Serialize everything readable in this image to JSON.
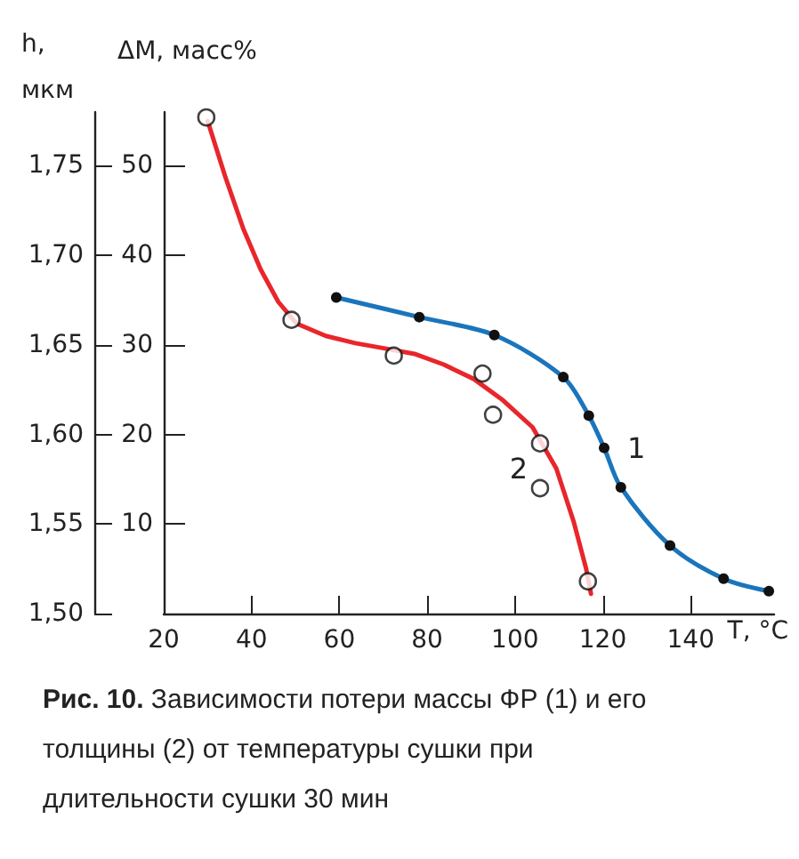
{
  "chart_data": {
    "type": "line",
    "title": "Рис. 10. Зависимости потери массы ФР (1) и его толщины (2) от температуры сушки при длительности сушки 30 мин",
    "xlabel": "T, °C",
    "ylabel": "ΔM, масс%",
    "y2label": "h, мкм",
    "xlim": [
      20,
      159
    ],
    "xticks": [
      20,
      40,
      60,
      80,
      100,
      120,
      140
    ],
    "ylim": [
      0,
      56
    ],
    "yticks": [
      10,
      20,
      30,
      40,
      50
    ],
    "y2lim": [
      1.5,
      1.78
    ],
    "y2ticks": [
      {
        "value": 1.5,
        "label": "1,50"
      },
      {
        "value": 1.55,
        "label": "1,55"
      },
      {
        "value": 1.6,
        "label": "1,60"
      },
      {
        "value": 1.65,
        "label": "1,65"
      },
      {
        "value": 1.7,
        "label": "1,70"
      },
      {
        "value": 1.75,
        "label": "1,75"
      }
    ],
    "grid": false,
    "legend": false,
    "series": [
      {
        "name": "1",
        "color": "#1a75bc",
        "marker": "circle",
        "x": [
          59.3,
          78.2,
          95.3,
          111.0,
          116.8,
          120.3,
          124.1,
          135.3,
          147.5,
          157.8
        ],
        "values": [
          35.3,
          33.1,
          31.1,
          26.4,
          22.1,
          18.5,
          14.1,
          7.6,
          3.9,
          2.5
        ]
      },
      {
        "name": "2",
        "axis": "y2",
        "color": "#e8262b",
        "marker": "none",
        "x": [
          30.0,
          34.0,
          38.1,
          42.1,
          46.1,
          50.2,
          56.9,
          63.6,
          70.4,
          77.1,
          83.8,
          90.6,
          97.3,
          104.0,
          109.4,
          113.4,
          116.2,
          117.3
        ],
        "values": [
          1.775,
          1.744,
          1.715,
          1.692,
          1.674,
          1.662,
          1.655,
          1.651,
          1.648,
          1.645,
          1.639,
          1.631,
          1.619,
          1.604,
          1.581,
          1.551,
          1.525,
          1.511
        ]
      },
      {
        "type": "scatter",
        "axis": "y2",
        "color": "#111111",
        "marker": "circle",
        "x": [
          29.7,
          49.1,
          72.4,
          92.6,
          95.0,
          105.7,
          105.7,
          116.6
        ],
        "values": [
          1.777,
          1.664,
          1.644,
          1.634,
          1.611,
          1.595,
          1.57,
          1.518
        ]
      }
    ]
  }
}
